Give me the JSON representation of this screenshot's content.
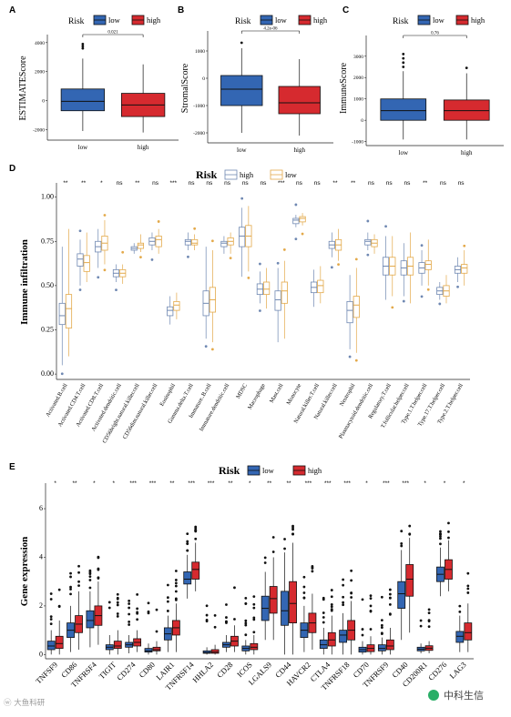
{
  "colors": {
    "low": "#3366b3",
    "high": "#d62a2f",
    "d_high": "#6f88b2",
    "d_low": "#e3a94a"
  },
  "watermark_left": "大鱼科研",
  "watermark_right": "中科生信",
  "chart_data": [
    {
      "panel": "A",
      "type": "box",
      "legend_title": "Risk",
      "legend": [
        "low",
        "high"
      ],
      "ylabel": "ESTIMATEScore",
      "yticks": [
        "4000",
        "2000",
        "0",
        "-2000"
      ],
      "ylim": [
        -2600,
        4300
      ],
      "categories": [
        "low",
        "high"
      ],
      "pvalue": "0.021",
      "boxes": [
        {
          "group": "low",
          "q1": -700,
          "median": -50,
          "q3": 800,
          "lo": -2100,
          "hi": 2900,
          "outliers": [
            3600,
            3750,
            3900
          ]
        },
        {
          "group": "high",
          "q1": -1100,
          "median": -300,
          "q3": 500,
          "lo": -2200,
          "hi": 2500,
          "outliers": []
        }
      ]
    },
    {
      "panel": "B",
      "type": "box",
      "legend_title": "Risk",
      "legend": [
        "low",
        "high"
      ],
      "ylabel": "StromalScore",
      "yticks": [
        "1000",
        "0",
        "-1000",
        "-2000"
      ],
      "ylim": [
        -2300,
        1600
      ],
      "categories": [
        "low",
        "high"
      ],
      "pvalue": "4.2e-06",
      "boxes": [
        {
          "group": "low",
          "q1": -1000,
          "median": -400,
          "q3": 100,
          "lo": -2000,
          "hi": 1100,
          "outliers": [
            1300
          ]
        },
        {
          "group": "high",
          "q1": -1300,
          "median": -900,
          "q3": -300,
          "lo": -2100,
          "hi": 700,
          "outliers": []
        }
      ]
    },
    {
      "panel": "C",
      "type": "box",
      "legend_title": "Risk",
      "legend": [
        "low",
        "high"
      ],
      "ylabel": "ImmuneScore",
      "yticks": [
        "3000",
        "2000",
        "1000",
        "0",
        "-1000"
      ],
      "ylim": [
        -1100,
        3800
      ],
      "categories": [
        "low",
        "high"
      ],
      "pvalue": "0.76",
      "boxes": [
        {
          "group": "low",
          "q1": 0,
          "median": 450,
          "q3": 1000,
          "lo": -900,
          "hi": 2300,
          "outliers": [
            2500,
            2700,
            2900,
            3100
          ]
        },
        {
          "group": "high",
          "q1": 0,
          "median": 450,
          "q3": 950,
          "lo": -900,
          "hi": 2200,
          "outliers": [
            2450
          ]
        }
      ]
    },
    {
      "panel": "D",
      "type": "box",
      "legend_title": "Risk",
      "legend": [
        "high",
        "low"
      ],
      "ylabel": "Immune infiltration",
      "yticks": [
        "1.00",
        "0.75",
        "0.50",
        "0.25",
        "0.00"
      ],
      "ylim": [
        -0.02,
        1.06
      ],
      "categories": [
        "Activated.B.cell",
        "Activated.CD4.T.cell",
        "Activated.CD8.T.cell",
        "Activated.dendritic.cell",
        "CD56bright.natural.killer.cell",
        "CD56dim.natural.killer.cell",
        "Eosinophil",
        "Gamma.delta.T.cell",
        "Immature..B.cell",
        "Immature.dendritic.cell",
        "MDSC",
        "Macrophage",
        "Mast.cell",
        "Monocyte",
        "Natural.killer.T.cell",
        "Natural.killer.cell",
        "Neutrophil",
        "Plasmacytoid.dendritic.cell",
        "Regulatory.T.cell",
        "T.follicular.helper.cell",
        "Type.1.T.helper.cell",
        "Type.17.T.helper.cell",
        "Type.2.T.helper.cell"
      ],
      "significance": [
        "**",
        "**",
        "*",
        "ns",
        "**",
        "ns",
        "***",
        "ns",
        "ns",
        "ns",
        "ns",
        "ns",
        "***",
        "ns",
        "ns",
        "**",
        "**",
        "ns",
        "ns",
        "ns",
        "**",
        "ns",
        "ns"
      ],
      "series": [
        {
          "name": "high",
          "boxes": [
            [
              0.28,
              0.33,
              0.4,
              0.05,
              0.72
            ],
            [
              0.61,
              0.65,
              0.68,
              0.5,
              0.76
            ],
            [
              0.69,
              0.72,
              0.75,
              0.6,
              0.82
            ],
            [
              0.55,
              0.57,
              0.59,
              0.52,
              0.62
            ],
            [
              0.7,
              0.71,
              0.72,
              0.68,
              0.74
            ],
            [
              0.73,
              0.75,
              0.77,
              0.7,
              0.8
            ],
            [
              0.33,
              0.36,
              0.38,
              0.28,
              0.44
            ],
            [
              0.73,
              0.75,
              0.76,
              0.7,
              0.8
            ],
            [
              0.33,
              0.4,
              0.47,
              0.2,
              0.72
            ],
            [
              0.72,
              0.74,
              0.75,
              0.68,
              0.78
            ],
            [
              0.72,
              0.78,
              0.83,
              0.55,
              0.94
            ],
            [
              0.45,
              0.48,
              0.51,
              0.4,
              0.58
            ],
            [
              0.36,
              0.42,
              0.47,
              0.18,
              0.6
            ],
            [
              0.85,
              0.87,
              0.88,
              0.83,
              0.9
            ],
            [
              0.46,
              0.49,
              0.52,
              0.38,
              0.59
            ],
            [
              0.71,
              0.73,
              0.75,
              0.66,
              0.8
            ],
            [
              0.29,
              0.36,
              0.41,
              0.14,
              0.56
            ],
            [
              0.73,
              0.75,
              0.76,
              0.7,
              0.8
            ],
            [
              0.56,
              0.61,
              0.66,
              0.42,
              0.78
            ],
            [
              0.56,
              0.6,
              0.64,
              0.44,
              0.74
            ],
            [
              0.57,
              0.6,
              0.63,
              0.5,
              0.7
            ],
            [
              0.45,
              0.47,
              0.49,
              0.42,
              0.52
            ],
            [
              0.57,
              0.59,
              0.61,
              0.52,
              0.66
            ]
          ]
        },
        {
          "name": "low",
          "boxes": [
            [
              0.26,
              0.37,
              0.45,
              0.1,
              0.82
            ],
            [
              0.58,
              0.63,
              0.67,
              0.52,
              0.8
            ],
            [
              0.7,
              0.74,
              0.78,
              0.62,
              0.87
            ],
            [
              0.55,
              0.57,
              0.59,
              0.51,
              0.62
            ],
            [
              0.71,
              0.73,
              0.74,
              0.69,
              0.79
            ],
            [
              0.72,
              0.76,
              0.78,
              0.68,
              0.82
            ],
            [
              0.36,
              0.39,
              0.41,
              0.31,
              0.46
            ],
            [
              0.73,
              0.74,
              0.76,
              0.7,
              0.79
            ],
            [
              0.35,
              0.42,
              0.49,
              0.18,
              0.7
            ],
            [
              0.73,
              0.75,
              0.77,
              0.68,
              0.8
            ],
            [
              0.72,
              0.78,
              0.84,
              0.58,
              0.95
            ],
            [
              0.45,
              0.48,
              0.52,
              0.37,
              0.6
            ],
            [
              0.4,
              0.47,
              0.52,
              0.2,
              0.64
            ],
            [
              0.86,
              0.88,
              0.89,
              0.84,
              0.91
            ],
            [
              0.46,
              0.5,
              0.53,
              0.4,
              0.61
            ],
            [
              0.7,
              0.73,
              0.76,
              0.64,
              0.82
            ],
            [
              0.32,
              0.39,
              0.44,
              0.12,
              0.6
            ],
            [
              0.72,
              0.74,
              0.76,
              0.68,
              0.79
            ],
            [
              0.56,
              0.61,
              0.66,
              0.44,
              0.78
            ],
            [
              0.56,
              0.61,
              0.66,
              0.4,
              0.8
            ],
            [
              0.59,
              0.62,
              0.64,
              0.5,
              0.76
            ],
            [
              0.44,
              0.47,
              0.5,
              0.4,
              0.56
            ],
            [
              0.57,
              0.6,
              0.62,
              0.5,
              0.7
            ]
          ]
        }
      ]
    },
    {
      "panel": "E",
      "type": "box",
      "legend_title": "Risk",
      "legend": [
        "low",
        "high"
      ],
      "ylabel": "Gene expression",
      "yticks": [
        "6",
        "4",
        "2",
        "0"
      ],
      "ylim": [
        -0.1,
        6.9
      ],
      "categories": [
        "TNFSF9",
        "CD86",
        "TNFRSF4",
        "TIGIT",
        "CD274",
        "CD80",
        "LAIR1",
        "TNFRSF14",
        "HHLA2",
        "CD28",
        "ICOS",
        "LGALS9",
        "CD44",
        "HAVCR2",
        "CTLA4",
        "TNFRSF18",
        "CD70",
        "TNFRSF9",
        "CD40",
        "CD200R1",
        "CD276",
        "LAG3"
      ],
      "significance": [
        "*",
        "**",
        "*",
        "*",
        "***",
        "***",
        "**",
        "***",
        "***",
        "**",
        "*",
        "**",
        "**",
        "***",
        "***",
        "***",
        "*",
        "***",
        "***",
        "*",
        "*",
        "*"
      ],
      "series": [
        {
          "name": "low",
          "boxes": [
            [
              0.2,
              0.35,
              0.55,
              0,
              1.0
            ],
            [
              0.7,
              1.0,
              1.3,
              0.1,
              2.0
            ],
            [
              1.1,
              1.4,
              1.8,
              0.3,
              2.6
            ],
            [
              0.2,
              0.3,
              0.4,
              0,
              0.8
            ],
            [
              0.3,
              0.4,
              0.5,
              0.05,
              0.8
            ],
            [
              0.1,
              0.15,
              0.25,
              0,
              0.45
            ],
            [
              0.6,
              0.85,
              1.1,
              0.1,
              1.6
            ],
            [
              2.9,
              3.1,
              3.4,
              2.3,
              4.1
            ],
            [
              0.05,
              0.08,
              0.15,
              0,
              0.3
            ],
            [
              0.3,
              0.4,
              0.5,
              0.1,
              0.8
            ],
            [
              0.15,
              0.25,
              0.35,
              0,
              0.6
            ],
            [
              1.4,
              1.9,
              2.4,
              0.6,
              3.4
            ],
            [
              1.2,
              1.8,
              2.6,
              0,
              4.2
            ],
            [
              0.7,
              1.0,
              1.3,
              0.1,
              2.0
            ],
            [
              0.25,
              0.4,
              0.6,
              0,
              1.1
            ],
            [
              0.5,
              0.8,
              1.0,
              0,
              1.7
            ],
            [
              0.1,
              0.2,
              0.3,
              0,
              0.55
            ],
            [
              0.15,
              0.25,
              0.4,
              0,
              0.7
            ],
            [
              1.9,
              2.5,
              3.0,
              0.6,
              4.3
            ],
            [
              0.15,
              0.22,
              0.3,
              0.05,
              0.45
            ],
            [
              3.0,
              3.3,
              3.6,
              2.4,
              4.4
            ],
            [
              0.5,
              0.75,
              0.95,
              0.1,
              1.6
            ]
          ]
        },
        {
          "name": "high",
          "boxes": [
            [
              0.25,
              0.45,
              0.75,
              0,
              1.4
            ],
            [
              0.9,
              1.25,
              1.6,
              0.2,
              2.6
            ],
            [
              1.2,
              1.6,
              2.0,
              0.4,
              3.0
            ],
            [
              0.25,
              0.35,
              0.55,
              0,
              1.0
            ],
            [
              0.35,
              0.5,
              0.65,
              0.1,
              1.0
            ],
            [
              0.15,
              0.2,
              0.3,
              0,
              0.55
            ],
            [
              0.8,
              1.1,
              1.4,
              0.1,
              2.1
            ],
            [
              3.1,
              3.5,
              3.8,
              2.6,
              4.6
            ],
            [
              0.05,
              0.1,
              0.2,
              0,
              0.4
            ],
            [
              0.35,
              0.55,
              0.75,
              0.1,
              1.2
            ],
            [
              0.2,
              0.3,
              0.45,
              0,
              0.8
            ],
            [
              1.7,
              2.3,
              2.8,
              0.6,
              4.0
            ],
            [
              1.3,
              2.1,
              3.0,
              0,
              4.6
            ],
            [
              0.9,
              1.3,
              1.7,
              0.2,
              2.5
            ],
            [
              0.35,
              0.6,
              0.9,
              0,
              1.6
            ],
            [
              0.6,
              1.0,
              1.4,
              0,
              2.2
            ],
            [
              0.12,
              0.25,
              0.4,
              0,
              0.75
            ],
            [
              0.2,
              0.35,
              0.6,
              0,
              1.1
            ],
            [
              2.4,
              3.1,
              3.7,
              0.9,
              4.8
            ],
            [
              0.17,
              0.26,
              0.36,
              0.05,
              0.55
            ],
            [
              3.1,
              3.5,
              3.9,
              2.6,
              4.7
            ],
            [
              0.6,
              0.9,
              1.3,
              0.1,
              2.1
            ]
          ]
        }
      ]
    }
  ]
}
